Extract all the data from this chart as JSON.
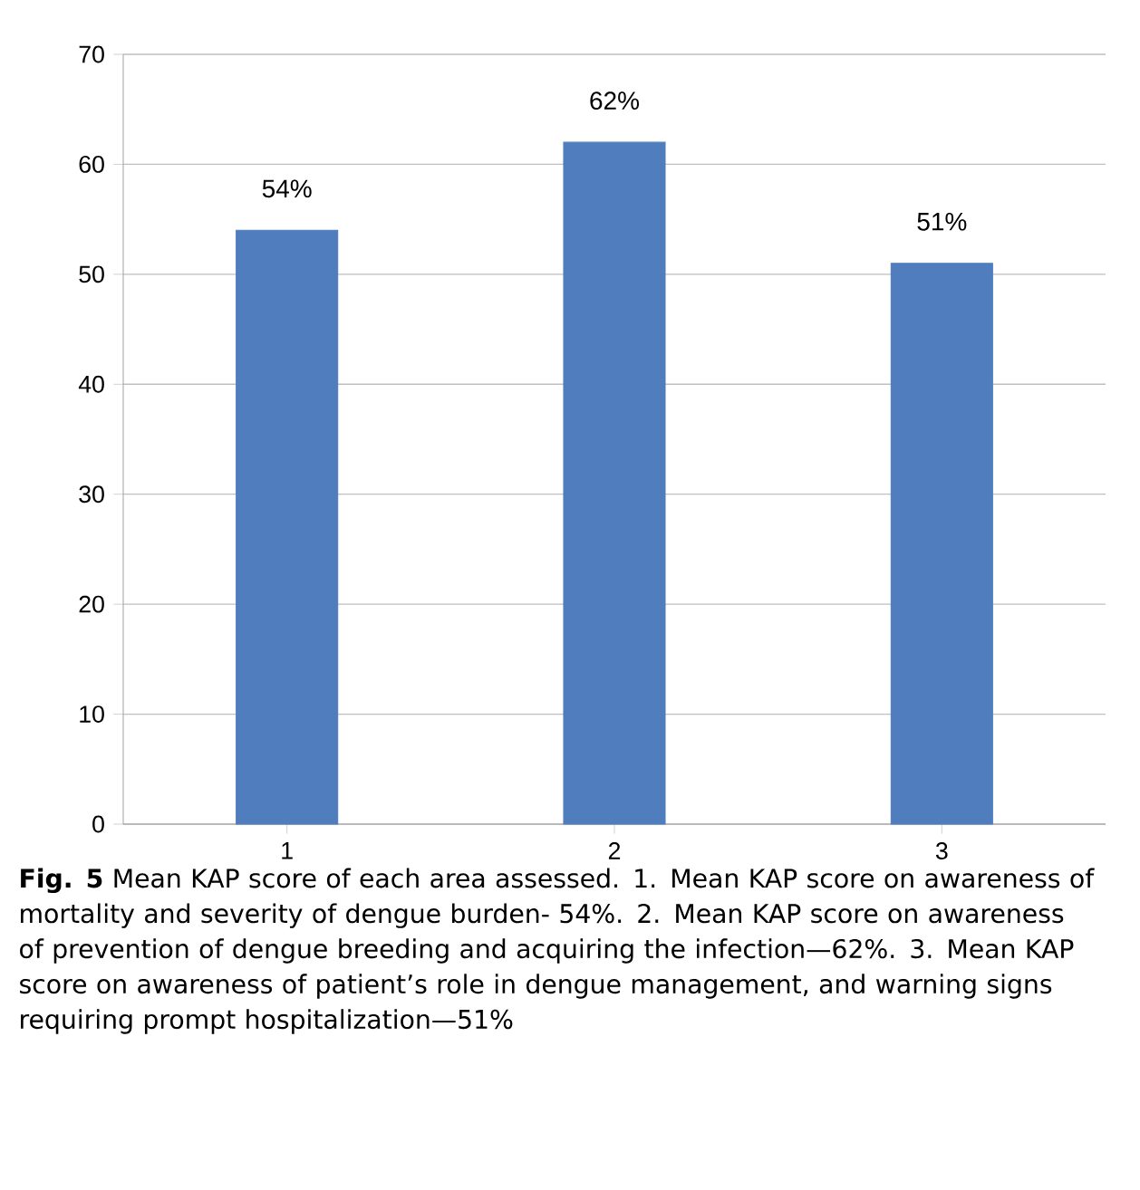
{
  "chart_data": {
    "type": "bar",
    "categories": [
      "1",
      "2",
      "3"
    ],
    "values": [
      54,
      62,
      51
    ],
    "value_labels": [
      "54%",
      "62%",
      "51%"
    ],
    "color": "#4f7dbd",
    "ylim": [
      0,
      70
    ],
    "yticks": [
      0,
      10,
      20,
      30,
      40,
      50,
      60,
      70
    ],
    "grid": "y",
    "annotations": [
      "**Fig. 5** Mean KAP score of each area assessed. 1. Mean KAP score on awareness of mortality and severity of dengue burden- 54%. 2. Mean KAP score on awareness of prevention of dengue breeding and acquiring the infection—62%. 3. Mean KAP score on awareness of patient’s role in dengue management, and warning signs requiring prompt hospitalization—51%"
    ]
  }
}
